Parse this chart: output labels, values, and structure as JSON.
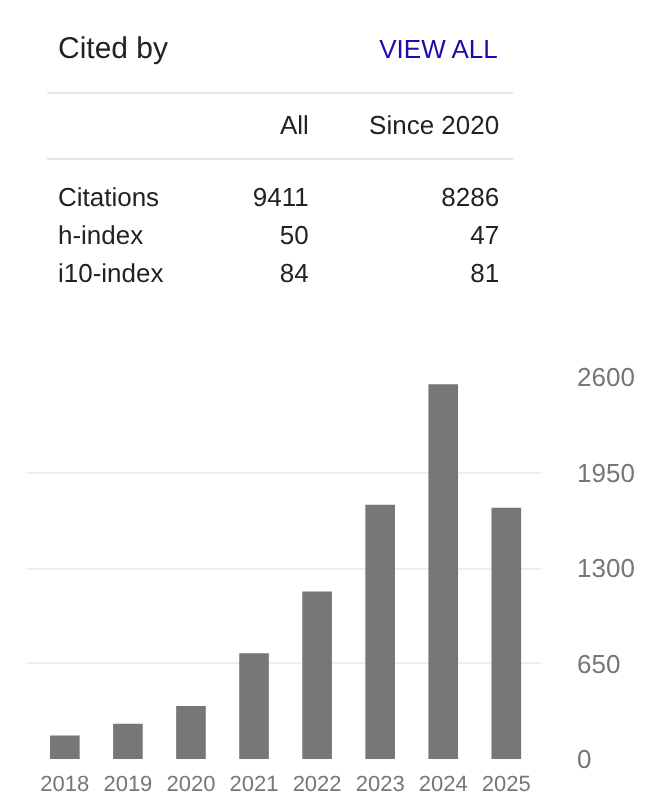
{
  "chart_data": [
    {
      "type": "other",
      "title": "Cited by",
      "annotations": [
        "VIEW ALL"
      ],
      "categories": [
        "Citations",
        "h-index",
        "i10-index"
      ],
      "data_labels": true,
      "series": [
        {
          "name": "All",
          "values": [
            9411,
            50,
            84
          ]
        },
        {
          "name": "Since 2020",
          "values": [
            8286,
            47,
            81
          ]
        }
      ]
    },
    {
      "type": "bar",
      "categories": [
        "2018",
        "2019",
        "2020",
        "2021",
        "2022",
        "2023",
        "2024",
        "2025"
      ],
      "values": [
        160,
        240,
        360,
        720,
        1140,
        1730,
        2550,
        1710
      ],
      "color": "#777777",
      "ylim": [
        0,
        2600
      ],
      "yticks": [
        0,
        650,
        1300,
        1950,
        2600
      ],
      "grid": "y"
    }
  ]
}
